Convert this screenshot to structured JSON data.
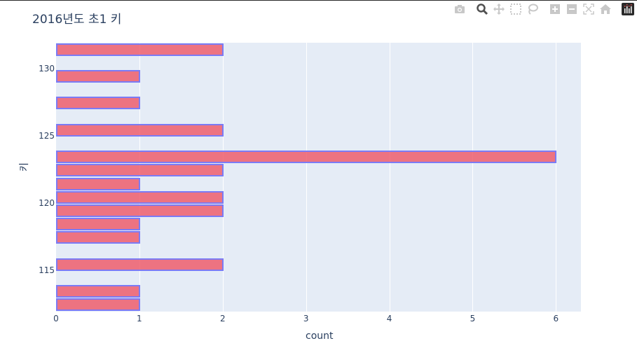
{
  "title": "2016년도 초1 키",
  "modebar": {
    "icons": [
      "camera-icon",
      "zoom-icon",
      "pan-icon",
      "box-select-icon",
      "lasso-select-icon",
      "zoom-in-icon",
      "zoom-out-icon",
      "autoscale-icon",
      "reset-axes-icon",
      "plotly-logo-icon"
    ]
  },
  "axes": {
    "xlabel": "count",
    "ylabel": "키",
    "xticks": [
      "0",
      "1",
      "2",
      "3",
      "4",
      "5",
      "6"
    ],
    "yticks": [
      "115",
      "120",
      "125",
      "130"
    ]
  },
  "colors": {
    "bar_fill": "#ef5564",
    "bar_border": "#7b7bf5",
    "plot_bg": "#e5ecf6",
    "text": "#2a3f5f"
  },
  "chart_data": {
    "type": "bar",
    "orientation": "horizontal",
    "title": "2016년도 초1 키",
    "xlabel": "count",
    "ylabel": "키",
    "bin_width": 1,
    "categories": [
      "112-113",
      "113-114",
      "115-116",
      "117-118",
      "118-119",
      "119-120",
      "120-121",
      "121-122",
      "122-123",
      "123-124",
      "125-126",
      "127-128",
      "129-130",
      "131-132"
    ],
    "bin_starts": [
      112,
      113,
      115,
      117,
      118,
      119,
      120,
      121,
      122,
      123,
      125,
      127,
      129,
      131
    ],
    "values": [
      1,
      1,
      2,
      1,
      1,
      2,
      2,
      1,
      2,
      6,
      2,
      1,
      1,
      2
    ],
    "xlim": [
      0,
      6.3
    ],
    "ylim": [
      112,
      132
    ],
    "xticks": [
      0,
      1,
      2,
      3,
      4,
      5,
      6
    ],
    "yticks": [
      115,
      120,
      125,
      130
    ],
    "grid": true,
    "legend": false
  }
}
